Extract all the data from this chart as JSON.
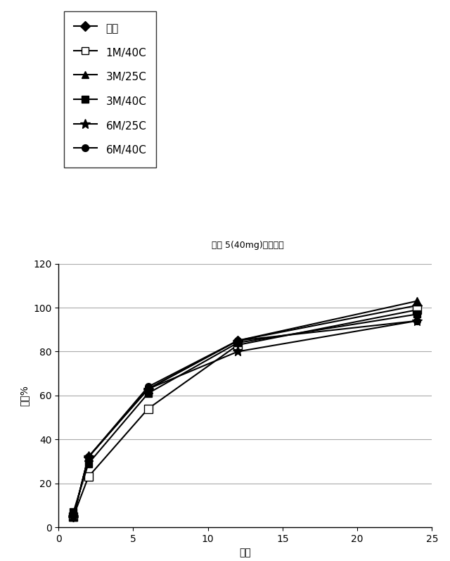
{
  "title": "製剂 5(40mg)平均結果",
  "xlabel": "時間",
  "ylabel": "放出%",
  "xlim": [
    0,
    25
  ],
  "ylim": [
    0,
    120
  ],
  "xticks": [
    0,
    5,
    10,
    15,
    20,
    25
  ],
  "yticks": [
    0,
    20,
    40,
    60,
    80,
    100,
    120
  ],
  "series": [
    {
      "label": "初期",
      "x": [
        1,
        2,
        6,
        12,
        24
      ],
      "y": [
        5,
        32,
        63,
        85,
        101
      ],
      "color": "#000000",
      "marker": "D",
      "markersize": 7,
      "markerfacecolor": "#000000",
      "markeredgecolor": "#000000",
      "linestyle": "-",
      "linewidth": 1.5,
      "zorder": 3
    },
    {
      "label": "1M/40C",
      "x": [
        1,
        2,
        6,
        12,
        24
      ],
      "y": [
        5,
        23,
        54,
        83,
        99
      ],
      "color": "#000000",
      "marker": "s",
      "markersize": 8,
      "markerfacecolor": "#ffffff",
      "markeredgecolor": "#000000",
      "linestyle": "-",
      "linewidth": 1.5,
      "zorder": 3
    },
    {
      "label": "3M/25C",
      "x": [
        1,
        2,
        6,
        12,
        24
      ],
      "y": [
        5,
        32,
        63,
        85,
        103
      ],
      "color": "#000000",
      "marker": "^",
      "markersize": 8,
      "markerfacecolor": "#000000",
      "markeredgecolor": "#000000",
      "linestyle": "-",
      "linewidth": 1.5,
      "zorder": 3
    },
    {
      "label": "3M/40C",
      "x": [
        1,
        2,
        6,
        12,
        24
      ],
      "y": [
        7,
        29,
        61,
        84,
        97
      ],
      "color": "#000000",
      "marker": "s",
      "markersize": 7,
      "markerfacecolor": "#000000",
      "markeredgecolor": "#000000",
      "linestyle": "-",
      "linewidth": 1.5,
      "zorder": 3
    },
    {
      "label": "6M/25C",
      "x": [
        1,
        2,
        6,
        12,
        24
      ],
      "y": [
        5,
        32,
        63,
        80,
        94
      ],
      "color": "#000000",
      "marker": "*",
      "markersize": 11,
      "markerfacecolor": "#000000",
      "markeredgecolor": "#000000",
      "linestyle": "-",
      "linewidth": 1.5,
      "zorder": 3
    },
    {
      "label": "6M/40C",
      "x": [
        1,
        2,
        6,
        12,
        24
      ],
      "y": [
        5,
        32,
        64,
        85,
        94
      ],
      "color": "#000000",
      "marker": "o",
      "markersize": 7,
      "markerfacecolor": "#000000",
      "markeredgecolor": "#000000",
      "linestyle": "-",
      "linewidth": 1.5,
      "zorder": 3
    }
  ],
  "legend_entries": [
    {
      "label": "初期",
      "marker": "D",
      "filled": true
    },
    {
      "label": "1M/40C",
      "marker": "s",
      "filled": false
    },
    {
      "label": "3M/25C",
      "marker": "^",
      "filled": true
    },
    {
      "label": "3M/40C",
      "marker": "s",
      "filled": true
    },
    {
      "label": "6M/25C",
      "marker": "*",
      "filled": true
    },
    {
      "label": "6M/40C",
      "marker": "o",
      "filled": true
    }
  ],
  "background_color": "#ffffff",
  "grid_color": "#aaaaaa",
  "title_fontsize": 9,
  "axis_fontsize": 10,
  "tick_fontsize": 10,
  "legend_fontsize": 11
}
